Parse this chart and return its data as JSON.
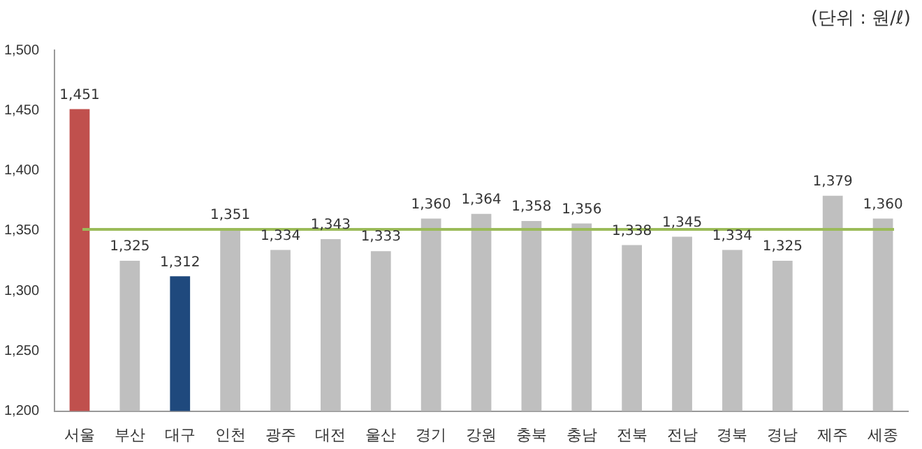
{
  "chart_data": {
    "type": "bar",
    "annotations": [
      "(단위 : 원/ℓ)"
    ],
    "categories": [
      "서울",
      "부산",
      "대구",
      "인천",
      "광주",
      "대전",
      "울산",
      "경기",
      "강원",
      "충북",
      "충남",
      "전북",
      "전남",
      "경북",
      "경남",
      "제주",
      "세종"
    ],
    "values": [
      1451,
      1325,
      1312,
      1351,
      1334,
      1343,
      1333,
      1360,
      1364,
      1358,
      1356,
      1338,
      1345,
      1334,
      1325,
      1379,
      1360
    ],
    "value_labels": [
      "1,451",
      "1,325",
      "1,312",
      "1,351",
      "1,334",
      "1,343",
      "1,333",
      "1,360",
      "1,364",
      "1,358",
      "1,356",
      "1,338",
      "1,345",
      "1,334",
      "1,325",
      "1,379",
      "1,360"
    ],
    "colors": [
      "#c0504d",
      "#bfbfbf",
      "#1f497d",
      "#bfbfbf",
      "#bfbfbf",
      "#bfbfbf",
      "#bfbfbf",
      "#bfbfbf",
      "#bfbfbf",
      "#bfbfbf",
      "#bfbfbf",
      "#bfbfbf",
      "#bfbfbf",
      "#bfbfbf",
      "#bfbfbf",
      "#bfbfbf",
      "#bfbfbf"
    ],
    "ylim": [
      1200,
      1500
    ],
    "yticks": [
      {
        "value": 1200,
        "label": "1,200"
      },
      {
        "value": 1250,
        "label": "1,250"
      },
      {
        "value": 1300,
        "label": "1,300"
      },
      {
        "value": 1350,
        "label": "1,350"
      },
      {
        "value": 1400,
        "label": "1,400"
      },
      {
        "value": 1450,
        "label": "1,450"
      },
      {
        "value": 1500,
        "label": "1,500"
      }
    ],
    "ref_lines": [
      {
        "axis": "y",
        "value": 1351,
        "color": "#9bbb59"
      }
    ],
    "grid": false,
    "legend": false
  }
}
